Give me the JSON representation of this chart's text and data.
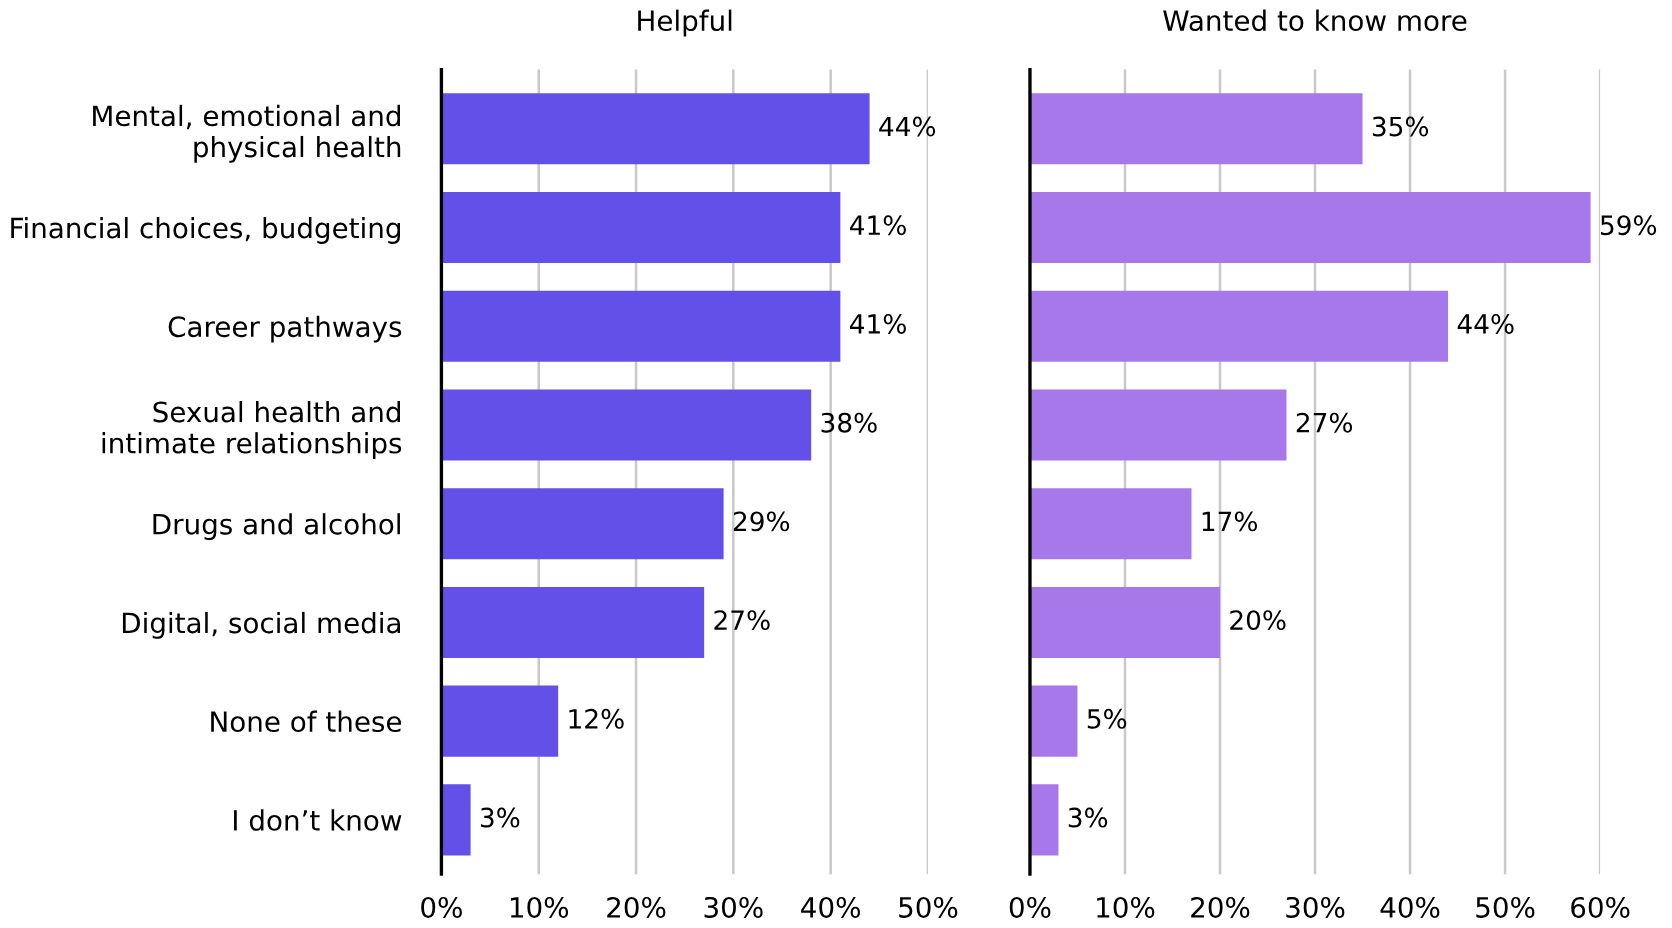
{
  "chart_data": [
    {
      "type": "bar",
      "orientation": "horizontal",
      "title": "Helpful",
      "categories": [
        "Mental, emotional and\nphysical health",
        "Financial choices, budgeting",
        "Career pathways",
        "Sexual health and\nintimate relationships",
        "Drugs and alcohol",
        "Digital, social media",
        "None of these",
        "I don’t know"
      ],
      "values": [
        44,
        41,
        41,
        38,
        29,
        27,
        12,
        3
      ],
      "color": "#6250e8",
      "xlim": [
        0,
        50
      ],
      "xticks": [
        {
          "value": 0,
          "label": "0%"
        },
        {
          "value": 10,
          "label": "10%"
        },
        {
          "value": 20,
          "label": "20%"
        },
        {
          "value": 30,
          "label": "30%"
        },
        {
          "value": 40,
          "label": "40%"
        },
        {
          "value": 50,
          "label": "50%"
        }
      ],
      "value_labels": [
        "44%",
        "41%",
        "41%",
        "38%",
        "29%",
        "27%",
        "12%",
        "3%"
      ],
      "grid": "x"
    },
    {
      "type": "bar",
      "orientation": "horizontal",
      "title": "Wanted to know more",
      "values": [
        35,
        59,
        44,
        27,
        17,
        20,
        5,
        3
      ],
      "color": "#a678ea",
      "xlim": [
        0,
        60
      ],
      "xticks": [
        {
          "value": 0,
          "label": "0%"
        },
        {
          "value": 10,
          "label": "10%"
        },
        {
          "value": 20,
          "label": "20%"
        },
        {
          "value": 30,
          "label": "30%"
        },
        {
          "value": 40,
          "label": "40%"
        },
        {
          "value": 50,
          "label": "50%"
        },
        {
          "value": 60,
          "label": "60%"
        }
      ],
      "value_labels": [
        "35%",
        "59%",
        "44%",
        "27%",
        "17%",
        "20%",
        "5%",
        "3%"
      ],
      "grid": "x",
      "tick_labels": "x"
    }
  ]
}
